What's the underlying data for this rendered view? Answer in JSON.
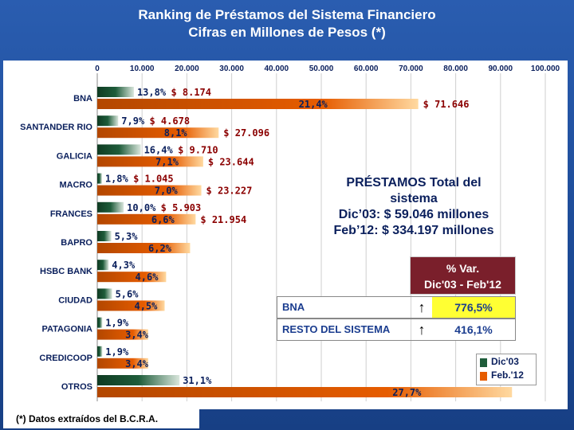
{
  "title_line1": "Ranking  de Préstamos del Sistema Financiero",
  "title_line2": "Cifras en Millones de Pesos (*)",
  "footnote": "(*) Datos extraídos del B.C.R.A.",
  "info": {
    "line1": "PRÉSTAMOS Total del",
    "line2": "sistema",
    "line3": "Dic’03: $ 59.046 millones",
    "line4": "Feb’12: $ 334.197 millones"
  },
  "variation_table": {
    "header_line1": "% Var.",
    "header_line2": "Dic'03 - Feb'12",
    "rows": [
      {
        "name": "BNA",
        "value": "776,5%",
        "bg": "#ffff33"
      },
      {
        "name": "RESTO DEL SISTEMA",
        "value": "416,1%",
        "bg": "#ffffff"
      }
    ]
  },
  "colors": {
    "dic03": "#1e5c3a",
    "feb12": "#e65c00",
    "label_pct": "#0a1f5c",
    "label_amount": "#8b0000"
  },
  "chart_data": {
    "type": "bar",
    "orientation": "horizontal",
    "title": "Ranking  de Préstamos del Sistema Financiero",
    "subtitle": "Cifras en Millones de Pesos (*)",
    "xlim": [
      0,
      100000
    ],
    "x_ticks": [
      "0",
      "10.000",
      "20.000",
      "30.000",
      "40.000",
      "50.000",
      "60.000",
      "70.000",
      "80.000",
      "90.000",
      "100.000"
    ],
    "categories": [
      "BNA",
      "SANTANDER RIO",
      "GALICIA",
      "MACRO",
      "FRANCES",
      "BAPRO",
      "HSBC BANK",
      "CIUDAD",
      "PATAGONIA",
      "CREDICOOP",
      "OTROS"
    ],
    "legend_position": "bottom-right",
    "series": [
      {
        "name": "Dic'03",
        "values": [
          8174,
          4678,
          9710,
          1045,
          5903,
          3129,
          2539,
          3307,
          1122,
          1122,
          18363
        ],
        "pct_labels": [
          "13,8%",
          "7,9%",
          "16,4%",
          "1,8%",
          "10,0%",
          "5,3%",
          "4,3%",
          "5,6%",
          "1,9%",
          "1,9%",
          "31,1%"
        ],
        "amount_labels": [
          "$ 8.174",
          "$ 4.678",
          "$ 9.710",
          "$ 1.045",
          "$ 5.903",
          "",
          "",
          "",
          "",
          "",
          ""
        ]
      },
      {
        "name": "Feb.'12",
        "values": [
          71646,
          27096,
          23644,
          23227,
          21954,
          20720,
          15373,
          15039,
          11363,
          11363,
          92572
        ],
        "pct_labels": [
          "21,4%",
          "8,1%",
          "7,1%",
          "7,0%",
          "6,6%",
          "6,2%",
          "4,6%",
          "4,5%",
          "3,4%",
          "3,4%",
          "27,7%"
        ],
        "amount_labels": [
          "$ 71.646",
          "$ 27.096",
          "$ 23.644",
          "$ 23.227",
          "$ 21.954",
          "",
          "",
          "",
          "",
          "",
          ""
        ]
      }
    ]
  }
}
